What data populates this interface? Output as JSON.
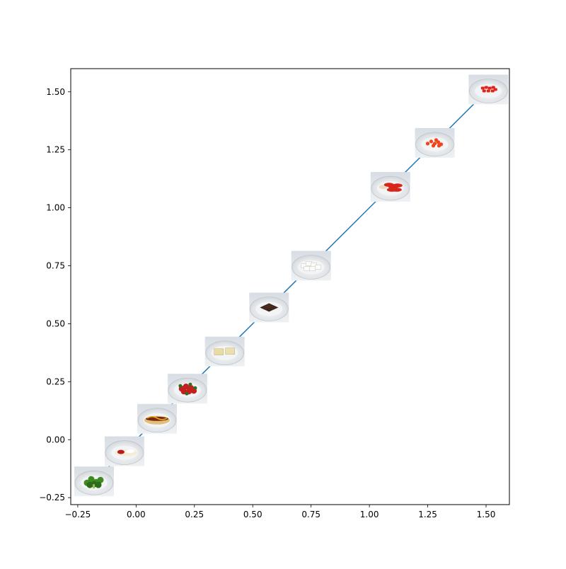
{
  "chart_data": {
    "type": "line",
    "title": "",
    "xlabel": "",
    "ylabel": "",
    "xlim": [
      -0.28,
      1.6
    ],
    "ylim": [
      -0.28,
      1.6
    ],
    "x_ticks": [
      -0.25,
      0.0,
      0.25,
      0.5,
      0.75,
      1.0,
      1.25,
      1.5
    ],
    "y_ticks": [
      -0.25,
      0.0,
      0.25,
      0.5,
      0.75,
      1.0,
      1.25,
      1.5
    ],
    "x_tick_labels": [
      "−0.25",
      "0.00",
      "0.25",
      "0.50",
      "0.75",
      "1.00",
      "1.25",
      "1.50"
    ],
    "y_tick_labels": [
      "−0.25",
      "0.00",
      "0.25",
      "0.50",
      "0.75",
      "1.00",
      "1.25",
      "1.50"
    ],
    "grid": false,
    "series": [
      {
        "color": "#1f77b4",
        "x": [
          -0.18,
          -0.05,
          0.09,
          0.22,
          0.38,
          0.57,
          0.75,
          1.09,
          1.28,
          1.51
        ],
        "y": [
          -0.18,
          -0.05,
          0.09,
          0.22,
          0.38,
          0.57,
          0.75,
          1.09,
          1.28,
          1.51
        ]
      }
    ],
    "image_markers": [
      {
        "name": "broccoli-plate",
        "x": -0.18,
        "y": -0.18
      },
      {
        "name": "crepe-plate",
        "x": -0.05,
        "y": -0.05
      },
      {
        "name": "hotdog-plate",
        "x": 0.09,
        "y": 0.09
      },
      {
        "name": "strawberries-plate",
        "x": 0.22,
        "y": 0.22
      },
      {
        "name": "rice-crispy-plate",
        "x": 0.38,
        "y": 0.38
      },
      {
        "name": "chocolate-plate",
        "x": 0.57,
        "y": 0.57
      },
      {
        "name": "cauliflower-plate",
        "x": 0.75,
        "y": 0.75
      },
      {
        "name": "sausages-plate",
        "x": 1.09,
        "y": 1.09
      },
      {
        "name": "carrots-plate",
        "x": 1.28,
        "y": 1.28
      },
      {
        "name": "red-peppers-plate",
        "x": 1.51,
        "y": 1.51
      }
    ]
  }
}
